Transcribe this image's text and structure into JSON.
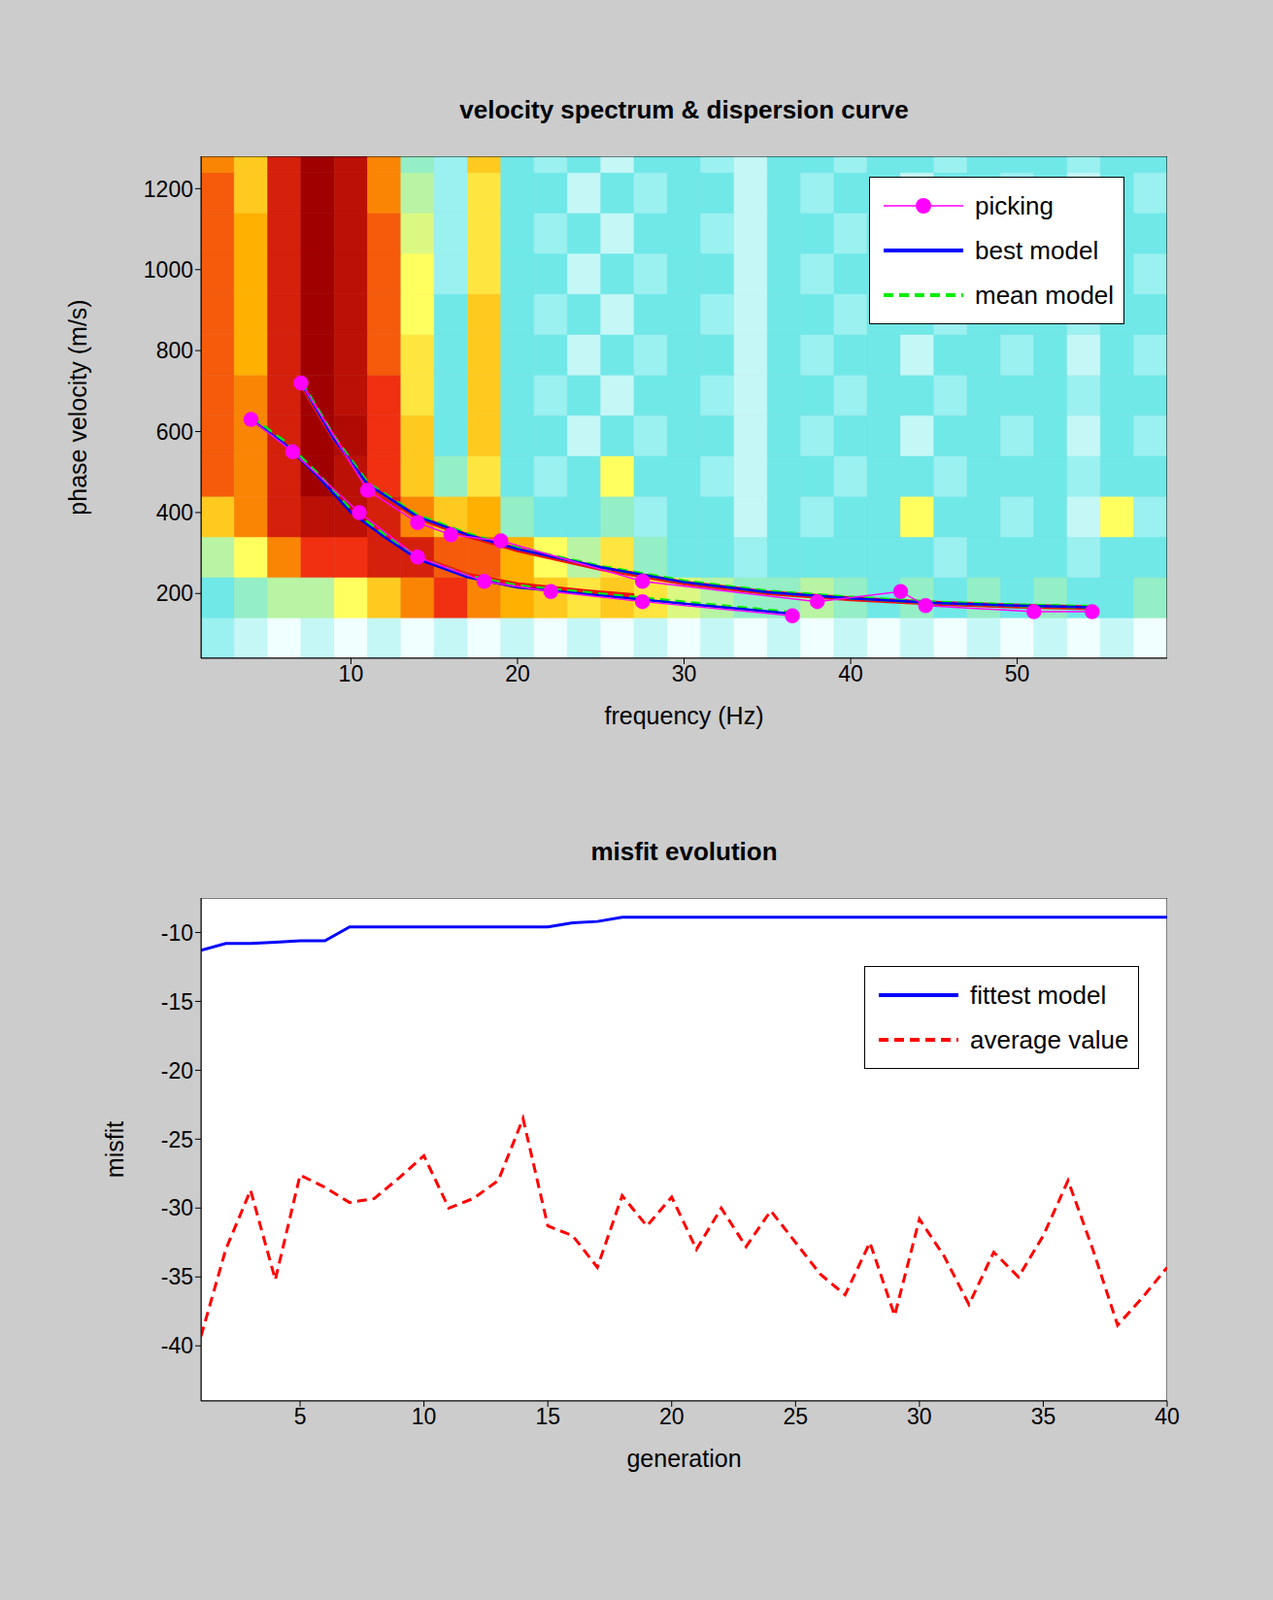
{
  "chart_data": [
    {
      "type": "line",
      "title": "velocity spectrum & dispersion curve",
      "x_label": "frequency (Hz)",
      "y_label": "phase velocity (m/s)",
      "xlim": [
        1,
        59
      ],
      "xticks": [
        10,
        20,
        30,
        40,
        50
      ],
      "ylim": [
        40,
        1280
      ],
      "yticks": [
        200,
        400,
        600,
        800,
        1000,
        1200
      ],
      "legend": "upper right",
      "spectrum": {
        "x_edges": [
          1,
          3,
          5,
          7,
          9,
          11,
          13,
          15,
          17,
          19,
          21,
          23,
          25,
          27,
          29,
          31,
          33,
          35,
          37,
          39,
          41,
          43,
          45,
          47,
          49,
          51,
          53,
          55,
          57,
          59
        ],
        "y_edges": [
          40,
          140,
          240,
          340,
          440,
          540,
          640,
          740,
          840,
          940,
          1040,
          1140,
          1240,
          1280
        ],
        "zlim": [
          0,
          1
        ],
        "z": [
          [
            0.25,
            0.2,
            0.15,
            0.2,
            0.15,
            0.2,
            0.15,
            0.2,
            0.15,
            0.2,
            0.15,
            0.2,
            0.15,
            0.2,
            0.15,
            0.2,
            0.15,
            0.2,
            0.15,
            0.2,
            0.15,
            0.2,
            0.15,
            0.2,
            0.15,
            0.2,
            0.15,
            0.2,
            0.15
          ],
          [
            0.3,
            0.35,
            0.4,
            0.4,
            0.5,
            0.6,
            0.7,
            0.8,
            0.7,
            0.65,
            0.6,
            0.55,
            0.6,
            0.55,
            0.45,
            0.4,
            0.35,
            0.35,
            0.4,
            0.35,
            0.3,
            0.35,
            0.3,
            0.35,
            0.3,
            0.35,
            0.3,
            0.3,
            0.35
          ],
          [
            0.4,
            0.5,
            0.7,
            0.8,
            0.8,
            0.85,
            0.85,
            0.75,
            0.75,
            0.65,
            0.5,
            0.4,
            0.55,
            0.35,
            0.3,
            0.3,
            0.25,
            0.3,
            0.3,
            0.3,
            0.3,
            0.3,
            0.25,
            0.3,
            0.3,
            0.3,
            0.25,
            0.3,
            0.3
          ],
          [
            0.6,
            0.7,
            0.85,
            0.9,
            0.9,
            0.85,
            0.7,
            0.6,
            0.65,
            0.35,
            0.3,
            0.3,
            0.35,
            0.25,
            0.3,
            0.3,
            0.2,
            0.3,
            0.25,
            0.3,
            0.3,
            0.5,
            0.3,
            0.3,
            0.25,
            0.3,
            0.2,
            0.5,
            0.25
          ],
          [
            0.75,
            0.7,
            0.85,
            0.95,
            0.9,
            0.8,
            0.6,
            0.35,
            0.55,
            0.3,
            0.25,
            0.3,
            0.5,
            0.3,
            0.3,
            0.25,
            0.2,
            0.3,
            0.3,
            0.25,
            0.3,
            0.3,
            0.25,
            0.3,
            0.3,
            0.3,
            0.25,
            0.3,
            0.3
          ],
          [
            0.75,
            0.7,
            0.85,
            0.95,
            0.92,
            0.8,
            0.6,
            0.3,
            0.6,
            0.3,
            0.3,
            0.2,
            0.3,
            0.25,
            0.3,
            0.3,
            0.2,
            0.3,
            0.25,
            0.3,
            0.3,
            0.2,
            0.3,
            0.3,
            0.25,
            0.3,
            0.2,
            0.3,
            0.25
          ],
          [
            0.75,
            0.7,
            0.85,
            0.95,
            0.9,
            0.8,
            0.55,
            0.3,
            0.6,
            0.3,
            0.25,
            0.3,
            0.2,
            0.3,
            0.3,
            0.25,
            0.2,
            0.3,
            0.3,
            0.25,
            0.3,
            0.3,
            0.25,
            0.3,
            0.3,
            0.3,
            0.25,
            0.3,
            0.3
          ],
          [
            0.75,
            0.65,
            0.85,
            0.95,
            0.9,
            0.75,
            0.55,
            0.3,
            0.6,
            0.3,
            0.3,
            0.2,
            0.3,
            0.25,
            0.3,
            0.3,
            0.2,
            0.3,
            0.25,
            0.3,
            0.3,
            0.2,
            0.3,
            0.3,
            0.25,
            0.3,
            0.2,
            0.3,
            0.25
          ],
          [
            0.75,
            0.65,
            0.85,
            0.95,
            0.9,
            0.75,
            0.5,
            0.3,
            0.6,
            0.3,
            0.25,
            0.3,
            0.2,
            0.3,
            0.3,
            0.25,
            0.2,
            0.3,
            0.3,
            0.25,
            0.3,
            0.3,
            0.25,
            0.3,
            0.3,
            0.3,
            0.25,
            0.3,
            0.3
          ],
          [
            0.75,
            0.65,
            0.85,
            0.95,
            0.9,
            0.75,
            0.5,
            0.25,
            0.55,
            0.3,
            0.3,
            0.2,
            0.3,
            0.25,
            0.3,
            0.3,
            0.2,
            0.3,
            0.25,
            0.3,
            0.3,
            0.2,
            0.3,
            0.3,
            0.25,
            0.3,
            0.2,
            0.3,
            0.25
          ],
          [
            0.75,
            0.65,
            0.85,
            0.95,
            0.9,
            0.75,
            0.45,
            0.25,
            0.55,
            0.3,
            0.25,
            0.3,
            0.2,
            0.3,
            0.3,
            0.25,
            0.2,
            0.3,
            0.3,
            0.25,
            0.3,
            0.3,
            0.25,
            0.3,
            0.3,
            0.3,
            0.25,
            0.3,
            0.3
          ],
          [
            0.75,
            0.6,
            0.85,
            0.95,
            0.9,
            0.7,
            0.4,
            0.25,
            0.55,
            0.3,
            0.3,
            0.2,
            0.3,
            0.25,
            0.3,
            0.3,
            0.2,
            0.3,
            0.25,
            0.3,
            0.3,
            0.2,
            0.3,
            0.3,
            0.25,
            0.3,
            0.2,
            0.3,
            0.25
          ],
          [
            0.7,
            0.6,
            0.85,
            0.95,
            0.9,
            0.7,
            0.35,
            0.25,
            0.6,
            0.3,
            0.25,
            0.3,
            0.2,
            0.3,
            0.3,
            0.25,
            0.2,
            0.3,
            0.3,
            0.25,
            0.3,
            0.3,
            0.25,
            0.3,
            0.3,
            0.3,
            0.25,
            0.3,
            0.3
          ]
        ]
      },
      "series": [
        {
          "name": "picking",
          "color": "#ff00ff",
          "marker": "circle",
          "line_style": "solid",
          "branches": [
            {
              "x": [
                4,
                6.5,
                10.5,
                14,
                18,
                22,
                27.5,
                36.5
              ],
              "values": [
                630,
                550,
                400,
                290,
                230,
                205,
                180,
                145
              ]
            },
            {
              "x": [
                7,
                11,
                14,
                16,
                19,
                27.5,
                38,
                43,
                44.5,
                51,
                54.5
              ],
              "values": [
                720,
                455,
                375,
                345,
                330,
                230,
                180,
                205,
                170,
                155,
                155
              ]
            }
          ]
        },
        {
          "name": "best model",
          "color": "#0000ff",
          "line_style": "solid",
          "branches": [
            {
              "x": [
                4,
                6,
                8,
                10,
                12,
                14,
                17,
                20,
                25,
                30,
                36.5
              ],
              "values": [
                630,
                570,
                490,
                400,
                340,
                285,
                240,
                215,
                195,
                175,
                150
              ]
            },
            {
              "x": [
                7,
                9,
                11,
                14,
                17,
                20,
                25,
                30,
                35,
                40,
                45,
                50,
                54.5
              ],
              "values": [
                720,
                580,
                470,
                390,
                345,
                310,
                265,
                228,
                203,
                188,
                177,
                170,
                166
              ]
            }
          ]
        },
        {
          "name": "mean model",
          "color": "#00ee00",
          "line_style": "dashed",
          "branches": [
            {
              "x": [
                4,
                6,
                8,
                10,
                12,
                14,
                17,
                20,
                25,
                30,
                36.5
              ],
              "values": [
                635,
                575,
                495,
                405,
                345,
                288,
                243,
                218,
                198,
                178,
                152
              ]
            },
            {
              "x": [
                7,
                9,
                11,
                14,
                17,
                20,
                25,
                30,
                35,
                40,
                45,
                50,
                54.5
              ],
              "values": [
                722,
                585,
                472,
                392,
                347,
                312,
                266,
                230,
                205,
                190,
                178,
                171,
                167
              ]
            }
          ]
        },
        {
          "color": "#ee1111",
          "line_style": "solid",
          "branches": [
            {
              "x": [
                11,
                14,
                17,
                20,
                24,
                27
              ],
              "values": [
                380,
                290,
                245,
                222,
                205,
                195
              ]
            },
            {
              "x": [
                7,
                9,
                11,
                14,
                17,
                20,
                25,
                30,
                35,
                40,
                45,
                50,
                54.5
              ],
              "values": [
                718,
                582,
                468,
                388,
                343,
                308,
                262,
                226,
                202,
                187,
                176,
                169,
                165
              ]
            }
          ]
        }
      ]
    },
    {
      "type": "line",
      "title": "misfit evolution",
      "x_label": "generation",
      "y_label": "misfit",
      "xlim": [
        1,
        40
      ],
      "xticks": [
        5,
        10,
        15,
        20,
        25,
        30,
        35,
        40
      ],
      "ylim": [
        -44,
        -7.5
      ],
      "yticks": [
        -40,
        -35,
        -30,
        -25,
        -20,
        -15,
        -10
      ],
      "legend": "upper right",
      "x": [
        1,
        2,
        3,
        4,
        5,
        6,
        7,
        8,
        9,
        10,
        11,
        12,
        13,
        14,
        15,
        16,
        17,
        18,
        19,
        20,
        21,
        22,
        23,
        24,
        25,
        26,
        27,
        28,
        29,
        30,
        31,
        32,
        33,
        34,
        35,
        36,
        37,
        38,
        39,
        40
      ],
      "series": [
        {
          "name": "fittest model",
          "color": "#0000ff",
          "line_style": "solid",
          "values": [
            -11.3,
            -10.8,
            -10.8,
            -10.7,
            -10.6,
            -10.6,
            -9.6,
            -9.6,
            -9.6,
            -9.6,
            -9.6,
            -9.6,
            -9.6,
            -9.6,
            -9.6,
            -9.3,
            -9.2,
            -8.9,
            -8.9,
            -8.9,
            -8.9,
            -8.9,
            -8.9,
            -8.9,
            -8.9,
            -8.9,
            -8.9,
            -8.9,
            -8.9,
            -8.9,
            -8.9,
            -8.9,
            -8.9,
            -8.9,
            -8.9,
            -8.9,
            -8.9,
            -8.9,
            -8.9,
            -8.9
          ]
        },
        {
          "name": "average value",
          "color": "#ff0000",
          "line_style": "dashed",
          "values": [
            -39.3,
            -33,
            -28.7,
            -35.2,
            -27.6,
            -28.5,
            -29.6,
            -29.3,
            -27.8,
            -26.2,
            -30,
            -29.3,
            -28,
            -23.5,
            -31.3,
            -32,
            -34.3,
            -29.1,
            -31.3,
            -29.2,
            -33,
            -30,
            -32.8,
            -30.2,
            -32.5,
            -34.8,
            -36.3,
            -32.5,
            -37.8,
            -30.8,
            -33.5,
            -37,
            -33.2,
            -35,
            -32,
            -28,
            -33,
            -38.5,
            -36.5,
            -34.3
          ]
        }
      ]
    }
  ]
}
